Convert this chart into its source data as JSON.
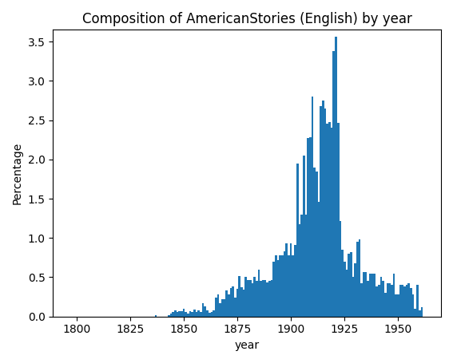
{
  "title": "Composition of AmericanStories (English) by year",
  "xlabel": "year",
  "ylabel": "Percentage",
  "bar_color": "#1f77b4",
  "ylim": [
    0,
    3.65
  ],
  "years": [
    1800,
    1801,
    1802,
    1803,
    1804,
    1805,
    1806,
    1807,
    1808,
    1809,
    1810,
    1811,
    1812,
    1813,
    1814,
    1815,
    1816,
    1817,
    1818,
    1819,
    1820,
    1821,
    1822,
    1823,
    1824,
    1825,
    1826,
    1827,
    1828,
    1829,
    1830,
    1831,
    1832,
    1833,
    1834,
    1835,
    1836,
    1837,
    1838,
    1839,
    1840,
    1841,
    1842,
    1843,
    1844,
    1845,
    1846,
    1847,
    1848,
    1849,
    1850,
    1851,
    1852,
    1853,
    1854,
    1855,
    1856,
    1857,
    1858,
    1859,
    1860,
    1861,
    1862,
    1863,
    1864,
    1865,
    1866,
    1867,
    1868,
    1869,
    1870,
    1871,
    1872,
    1873,
    1874,
    1875,
    1876,
    1877,
    1878,
    1879,
    1880,
    1881,
    1882,
    1883,
    1884,
    1885,
    1886,
    1887,
    1888,
    1889,
    1890,
    1891,
    1892,
    1893,
    1894,
    1895,
    1896,
    1897,
    1898,
    1899,
    1900,
    1901,
    1902,
    1903,
    1904,
    1905,
    1906,
    1907,
    1908,
    1909,
    1910,
    1911,
    1912,
    1913,
    1914,
    1915,
    1916,
    1917,
    1918,
    1919,
    1920,
    1921,
    1922,
    1923,
    1924,
    1925,
    1926,
    1927,
    1928,
    1929,
    1930,
    1931,
    1932,
    1933,
    1934,
    1935,
    1936,
    1937,
    1938,
    1939,
    1940,
    1941,
    1942,
    1943,
    1944,
    1945,
    1946,
    1947,
    1948,
    1949,
    1950,
    1951,
    1952,
    1953,
    1954,
    1955,
    1956,
    1957,
    1958,
    1959,
    1960,
    1961,
    1962,
    1963
  ],
  "values": [
    0.0,
    0.0,
    0.0,
    0.0,
    0.0,
    0.0,
    0.0,
    0.0,
    0.0,
    0.0,
    0.0,
    0.0,
    0.0,
    0.0,
    0.0,
    0.0,
    0.0,
    0.0,
    0.0,
    0.0,
    0.0,
    0.0,
    0.0,
    0.0,
    0.0,
    0.0,
    0.0,
    0.0,
    0.0,
    0.0,
    0.0,
    0.0,
    0.0,
    0.0,
    0.0,
    0.0,
    0.0,
    0.02,
    0.0,
    0.0,
    0.0,
    0.0,
    0.0,
    0.02,
    0.04,
    0.06,
    0.08,
    0.06,
    0.07,
    0.07,
    0.1,
    0.06,
    0.04,
    0.07,
    0.06,
    0.09,
    0.06,
    0.08,
    0.06,
    0.17,
    0.13,
    0.08,
    0.05,
    0.06,
    0.08,
    0.24,
    0.28,
    0.17,
    0.22,
    0.22,
    0.33,
    0.28,
    0.36,
    0.38,
    0.24,
    0.35,
    0.52,
    0.37,
    0.34,
    0.5,
    0.46,
    0.46,
    0.42,
    0.5,
    0.45,
    0.6,
    0.45,
    0.46,
    0.46,
    0.43,
    0.45,
    0.46,
    0.7,
    0.78,
    0.72,
    0.78,
    0.78,
    0.83,
    0.93,
    0.78,
    0.93,
    0.78,
    0.91,
    1.95,
    1.18,
    1.3,
    2.05,
    1.3,
    2.27,
    2.28,
    2.8,
    1.9,
    1.85,
    1.46,
    2.68,
    2.75,
    2.65,
    2.45,
    2.48,
    2.4,
    3.38,
    3.56,
    2.47,
    1.22,
    0.85,
    0.7,
    0.6,
    0.8,
    0.82,
    0.5,
    0.68,
    0.95,
    0.98,
    0.42,
    0.57,
    0.57,
    0.45,
    0.55,
    0.55,
    0.55,
    0.38,
    0.4,
    0.5,
    0.45,
    0.3,
    0.42,
    0.42,
    0.4,
    0.55,
    0.28,
    0.28,
    0.4,
    0.4,
    0.38,
    0.4,
    0.42,
    0.36,
    0.28,
    0.1,
    0.4,
    0.08,
    0.12,
    0.0,
    0.0
  ]
}
